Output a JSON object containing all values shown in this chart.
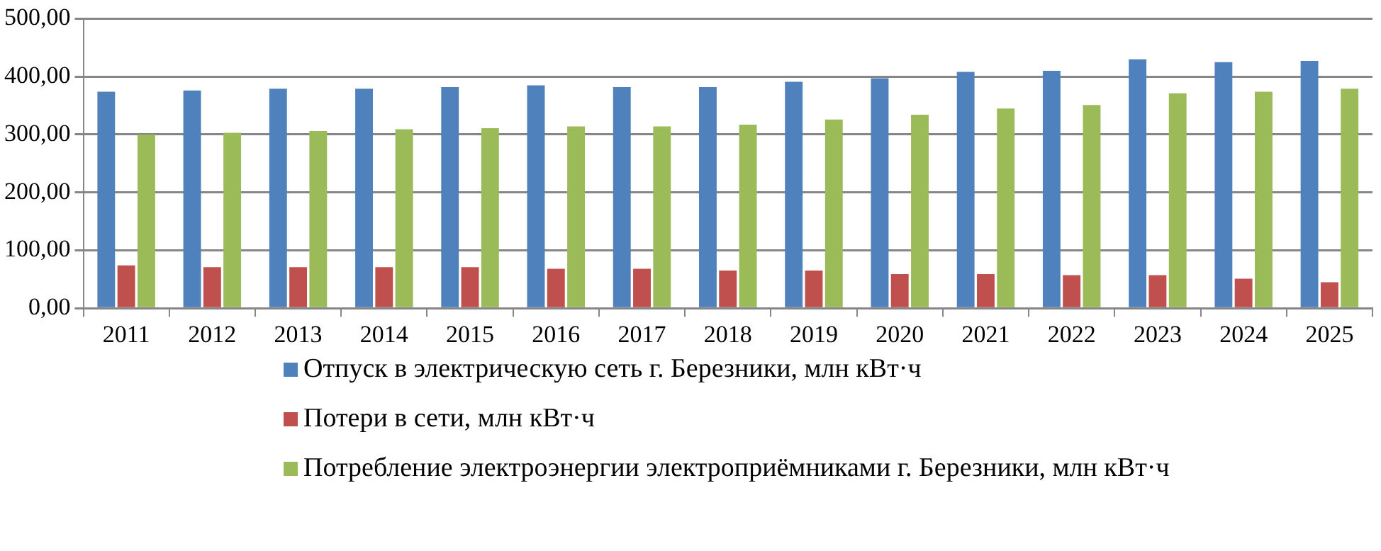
{
  "chart_data": {
    "type": "bar",
    "categories": [
      "2011",
      "2012",
      "2013",
      "2014",
      "2015",
      "2016",
      "2017",
      "2018",
      "2019",
      "2020",
      "2021",
      "2022",
      "2023",
      "2024",
      "2025"
    ],
    "series": [
      {
        "name": "Отпуск в электрическую сеть г. Березники, млн кВт·ч",
        "color": "#4f81bd",
        "values": [
          374,
          376,
          379,
          379,
          382,
          385,
          382,
          382,
          391,
          397,
          408,
          410,
          430,
          425,
          427
        ]
      },
      {
        "name": "Потери в сети, млн кВт·ч",
        "color": "#c0504d",
        "values": [
          74,
          71,
          71,
          71,
          71,
          68,
          68,
          65,
          65,
          59,
          59,
          57,
          57,
          51,
          45
        ]
      },
      {
        "name": "Потребление электроэнергии электроприёмниками г. Березники, млн кВт·ч",
        "color": "#9bbb59",
        "values": [
          300,
          303,
          306,
          309,
          311,
          314,
          314,
          317,
          326,
          334,
          345,
          351,
          371,
          374,
          379
        ]
      }
    ],
    "ylim": [
      0,
      500
    ],
    "yticks": [
      {
        "value": 0,
        "label": "0,00"
      },
      {
        "value": 100,
        "label": "100,00"
      },
      {
        "value": 200,
        "label": "200,00"
      },
      {
        "value": 300,
        "label": "300,00"
      },
      {
        "value": 400,
        "label": "400,00"
      },
      {
        "value": 500,
        "label": "500,00"
      }
    ],
    "grid": "y",
    "legend": "bottom"
  }
}
